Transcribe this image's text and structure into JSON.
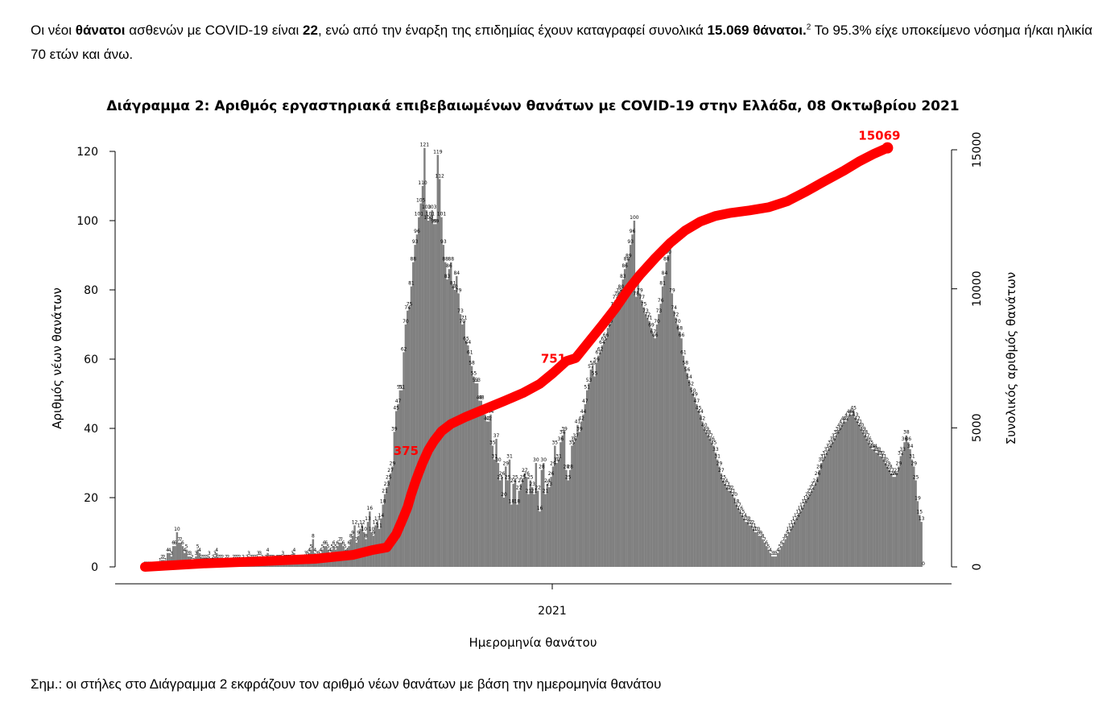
{
  "intro": {
    "t1": "Οι νέοι ",
    "b1": "θάνατοι",
    "t2": " ασθενών με COVID-19 είναι ",
    "b2": "22",
    "t3": ", ενώ από την έναρξη της επιδημίας έχουν καταγραφεί συνολικά ",
    "b3": "15.069 θάνατοι.",
    "footnote": "2",
    "t4": "  Το 95.3% είχε υποκείμενο νόσημα ή/και ηλικία 70 ετών και άνω."
  },
  "note": "Σημ.: οι στήλες στο Διάγραμμα 2 εκφράζουν τον αριθμό νέων θανάτων με βάση την ημερομηνία θανάτου",
  "colors": {
    "bars": "#808080",
    "line": "#ff0000",
    "text": "#000000"
  },
  "chart_data": {
    "type": "bar",
    "title": "Διάγραμμα 2: Αριθμός εργαστηριακά επιβεβαιωμένων θανάτων με COVID-19 στην Ελλάδα, 08 Οκτωβρίου 2021",
    "xlabel": "Ημερομηνία θανάτου",
    "ylabel": "Αριθμός νέων θανάτων",
    "y2label": "Συνολικός αριθμός θανάτων",
    "ylim": [
      0,
      120
    ],
    "yticks": [
      0,
      20,
      40,
      60,
      80,
      100,
      120
    ],
    "y2lim": [
      0,
      15000
    ],
    "y2ticks": [
      0,
      5000,
      10000,
      15000
    ],
    "xtick_label": "2021",
    "grid": false,
    "series": [
      {
        "type": "bar",
        "values": [
          0,
          0,
          0,
          0,
          0,
          0,
          0,
          0,
          1,
          2,
          2,
          1,
          4,
          4,
          3,
          6,
          6,
          10,
          7,
          7,
          6,
          4,
          5,
          3,
          3,
          2,
          1,
          3,
          5,
          4,
          2,
          2,
          2,
          2,
          3,
          1,
          2,
          3,
          4,
          2,
          2,
          2,
          1,
          2,
          2,
          1,
          1,
          2,
          2,
          2,
          2,
          1,
          2,
          1,
          2,
          3,
          2,
          2,
          2,
          2,
          3,
          3,
          2,
          1,
          2,
          4,
          2,
          2,
          2,
          1,
          2,
          2,
          2,
          3,
          2,
          2,
          2,
          2,
          3,
          4,
          2,
          2,
          2,
          2,
          2,
          3,
          3,
          4,
          5,
          8,
          4,
          3,
          3,
          4,
          5,
          6,
          6,
          5,
          4,
          5,
          6,
          5,
          6,
          7,
          7,
          6,
          5,
          4,
          6,
          8,
          9,
          12,
          7,
          9,
          11,
          12,
          10,
          8,
          13,
          16,
          10,
          9,
          12,
          13,
          11,
          14,
          18,
          21,
          23,
          25,
          27,
          29,
          39,
          45,
          47,
          51,
          51,
          62,
          70,
          74,
          75,
          81,
          88,
          93,
          96,
          101,
          105,
          110,
          121,
          103,
          100,
          101,
          103,
          99,
          99,
          119,
          112,
          101,
          93,
          88,
          83,
          86,
          88,
          81,
          80,
          84,
          79,
          73,
          70,
          71,
          65,
          64,
          61,
          58,
          55,
          53,
          53,
          48,
          48,
          45,
          44,
          42,
          42,
          44,
          35,
          31,
          37,
          30,
          25,
          26,
          20,
          29,
          25,
          31,
          18,
          24,
          25,
          18,
          22,
          24,
          25,
          27,
          26,
          21,
          25,
          23,
          21,
          30,
          22,
          16,
          28,
          30,
          21,
          24,
          23,
          26,
          29,
          35,
          30,
          31,
          36,
          38,
          39,
          28,
          25,
          28,
          35,
          36,
          37,
          41,
          39,
          42,
          44,
          47,
          51,
          53,
          57,
          58,
          55,
          59,
          61,
          62,
          64,
          65,
          66,
          69,
          70,
          73,
          75,
          77,
          78,
          79,
          80,
          83,
          86,
          88,
          89,
          93,
          96,
          100,
          78,
          82,
          79,
          77,
          75,
          73,
          72,
          71,
          69,
          67,
          66,
          70,
          73,
          76,
          81,
          84,
          88,
          90,
          93,
          79,
          74,
          72,
          70,
          68,
          66,
          61,
          58,
          56,
          54,
          52,
          50,
          49,
          47,
          45,
          44,
          42,
          40,
          39,
          38,
          37,
          36,
          35,
          33,
          31,
          29,
          27,
          25,
          24,
          23,
          22,
          22,
          21,
          20,
          18,
          17,
          16,
          15,
          14,
          13,
          13,
          12,
          12,
          11,
          10,
          10,
          9,
          9,
          8,
          7,
          6,
          5,
          4,
          3,
          3,
          3,
          4,
          5,
          6,
          7,
          8,
          9,
          10,
          11,
          12,
          13,
          14,
          15,
          16,
          17,
          18,
          19,
          20,
          21,
          22,
          23,
          24,
          26,
          28,
          30,
          31,
          32,
          33,
          34,
          35,
          36,
          37,
          38,
          39,
          40,
          41,
          42,
          42,
          43,
          44,
          44,
          45,
          43,
          42,
          41,
          40,
          39,
          38,
          37,
          36,
          35,
          34,
          34,
          33,
          33,
          32,
          32,
          31,
          30,
          29,
          28,
          27,
          26,
          26,
          27,
          29,
          32,
          33,
          36,
          38,
          36,
          34,
          31,
          29,
          25,
          19,
          15,
          13,
          0
        ]
      },
      {
        "type": "line",
        "axis": "right",
        "name": "",
        "final_label": "15069",
        "points": [
          [
            0,
            0
          ],
          [
            30,
            120
          ],
          [
            60,
            200
          ],
          [
            90,
            290
          ],
          [
            110,
            430
          ],
          [
            120,
            600
          ],
          [
            128,
            700
          ],
          [
            133,
            1180
          ],
          [
            136,
            1650
          ],
          [
            139,
            2150
          ],
          [
            141,
            2620
          ],
          [
            143,
            3030
          ],
          [
            145,
            3400
          ],
          [
            147,
            3750
          ],
          [
            150,
            4200
          ],
          [
            153,
            4530
          ],
          [
            157,
            4880
          ],
          [
            162,
            5140
          ],
          [
            170,
            5400
          ],
          [
            180,
            5680
          ],
          [
            190,
            5960
          ],
          [
            200,
            6250
          ],
          [
            209,
            6580
          ],
          [
            216,
            6970
          ],
          [
            223,
            7400
          ],
          [
            228,
            7510
          ],
          [
            235,
            8100
          ],
          [
            242,
            8690
          ],
          [
            249,
            9300
          ],
          [
            256,
            9990
          ],
          [
            262,
            10500
          ],
          [
            270,
            11100
          ],
          [
            278,
            11650
          ],
          [
            286,
            12100
          ],
          [
            294,
            12420
          ],
          [
            302,
            12620
          ],
          [
            310,
            12730
          ],
          [
            320,
            12820
          ],
          [
            330,
            12930
          ],
          [
            340,
            13150
          ],
          [
            350,
            13500
          ],
          [
            360,
            13880
          ],
          [
            370,
            14250
          ],
          [
            378,
            14580
          ],
          [
            386,
            14860
          ],
          [
            393,
            15069
          ]
        ],
        "annotations": [
          {
            "x": 150,
            "y": 4200,
            "label": "375"
          },
          {
            "x": 228,
            "y": 7510,
            "label": "751"
          },
          {
            "x": 393,
            "y": 15069,
            "label": "15069"
          }
        ]
      }
    ],
    "label_every": 1
  }
}
